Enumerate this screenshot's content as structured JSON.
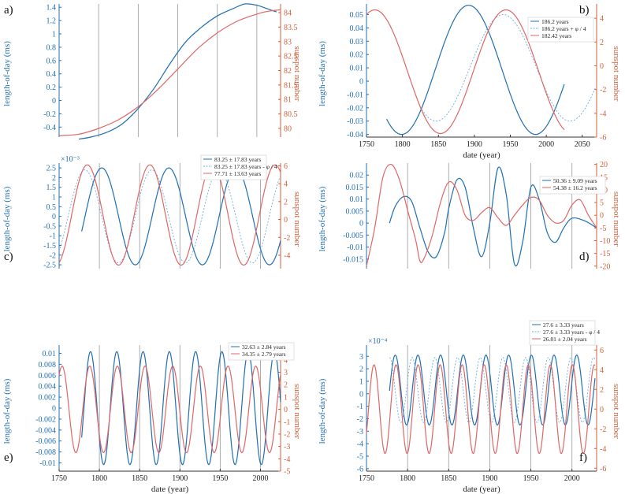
{
  "colors": {
    "blue": "#1f6fb2",
    "lightblue": "#6aaee0",
    "red": "#e06666",
    "axisBlue": "#1f6fb2",
    "axisRed": "#d0603a",
    "vline": "#999999"
  },
  "common": {
    "xlabel": "date (year)",
    "ylabel_left": "length-of-day (ms)",
    "ylabel_right": "sunspot number"
  },
  "chart_data": [
    {
      "panel": "a)",
      "type": "line",
      "xlim": [
        1750,
        2030
      ],
      "ylim_left": [
        -0.55,
        1.45
      ],
      "yticks_left": [
        "-0.4",
        "-0.2",
        "0",
        "0.2",
        "0.4",
        "0.6",
        "0.8",
        "1",
        "1.2",
        "1.4"
      ],
      "ylim_right": [
        79.7,
        84.3
      ],
      "yticks_right": [
        "80",
        "80.5",
        "81",
        "81.5",
        "82",
        "82.5",
        "83",
        "83.5",
        "84"
      ],
      "xticks": [],
      "vlines": [
        1800,
        1850,
        1900,
        1950,
        2000
      ],
      "ylabel_left": "length-of-day (ms)",
      "ylabel_right": "sunspot number",
      "series": [
        {
          "color": "blue",
          "axis": "left",
          "x": [
            1775,
            1790,
            1810,
            1830,
            1850,
            1870,
            1890,
            1910,
            1930,
            1950,
            1970,
            1985,
            2000,
            2015,
            2025
          ],
          "y": [
            -0.58,
            -0.55,
            -0.48,
            -0.35,
            -0.12,
            0.18,
            0.55,
            0.88,
            1.1,
            1.27,
            1.38,
            1.45,
            1.43,
            1.37,
            1.33
          ]
        },
        {
          "color": "red",
          "axis": "right",
          "x": [
            1750,
            1775,
            1800,
            1825,
            1850,
            1875,
            1900,
            1925,
            1950,
            1975,
            2000,
            2015,
            2030
          ],
          "y": [
            79.75,
            79.8,
            80.0,
            80.3,
            80.75,
            81.35,
            82.05,
            82.75,
            83.3,
            83.7,
            83.95,
            84.05,
            84.1
          ]
        }
      ]
    },
    {
      "panel": "b)",
      "type": "line",
      "xlim": [
        1750,
        2070
      ],
      "xticks": [
        "1750",
        "1800",
        "1850",
        "1900",
        "1950",
        "2000",
        "2050"
      ],
      "ylim_left": [
        -0.042,
        0.058
      ],
      "yticks_left": [
        "-0.04",
        "-0.03",
        "-0.02",
        "-0.01",
        "0",
        "0.01",
        "0.02",
        "0.03",
        "0.04",
        "0.05"
      ],
      "ylim_right": [
        -6,
        5.2
      ],
      "yticks_right": [
        "-6",
        "-4",
        "-2",
        "0",
        "2",
        "4"
      ],
      "xlabel": "date (year)",
      "ylabel_left": "length-of-day (ms)",
      "ylabel_right": "sunspot number",
      "legend": [
        "186.2 years",
        "186.2 years + φ / 4",
        "182.42 years"
      ],
      "series": [
        {
          "color": "blue",
          "axis": "left",
          "period": 186.2,
          "amp": 0.0485,
          "mean": 0.0085,
          "peak": 1892,
          "x0": 1778,
          "x1": 2025
        },
        {
          "color": "lightblue",
          "axis": "left",
          "dashed": true,
          "period": 186.2,
          "amp": 0.04,
          "mean": 0.01,
          "peak": 1940,
          "x0": 1827,
          "x1": 2068
        },
        {
          "color": "red",
          "axis": "right",
          "period": 182.42,
          "amp": 5.2,
          "mean": -0.5,
          "peak": 1944,
          "x0": 1750,
          "x1": 2025
        }
      ]
    },
    {
      "panel": "c)",
      "type": "line",
      "xlim": [
        1750,
        2025
      ],
      "xticks": [],
      "vlines": [
        1800,
        1850,
        1900,
        1950,
        2000
      ],
      "exponent": "×10⁻³",
      "ylim_left": [
        -2.7,
        2.75
      ],
      "yticks_left": [
        "-2.5",
        "-2",
        "-1.5",
        "-1",
        "-0.5",
        "0",
        "0.5",
        "1",
        "1.5",
        "2",
        "2.5"
      ],
      "ylim_right": [
        -5.5,
        6.3
      ],
      "yticks_right": [
        "-4",
        "-2",
        "0",
        "2",
        "4",
        "6"
      ],
      "ylabel_left": "length-of-day (ms)",
      "ylabel_right": "sunspot number",
      "legend": [
        "83.25 ± 17.83 years",
        "83.25 ± 17.83 years - φ / 4",
        "77.71 ± 13.63 years"
      ],
      "series": [
        {
          "color": "blue",
          "axis": "left",
          "period": 83.25,
          "amp": 2.5,
          "mean": 0.0,
          "peak": 1803,
          "x0": 1778,
          "x1": 2025
        },
        {
          "color": "lightblue",
          "axis": "left",
          "dashed": true,
          "period": 83.25,
          "amp": 2.4,
          "mean": 0.0,
          "peak": 1782,
          "x0": 1750,
          "x1": 2025
        },
        {
          "color": "red",
          "axis": "right",
          "period": 77.71,
          "amp": 5.6,
          "mean": 0.5,
          "peak": 1785,
          "x0": 1750,
          "x1": 2025
        }
      ]
    },
    {
      "panel": "d)",
      "type": "line",
      "xlim": [
        1750,
        2030
      ],
      "xticks": [],
      "vlines": [
        1800,
        1850,
        1900,
        1950,
        2000
      ],
      "ylim_left": [
        -0.019,
        0.025
      ],
      "yticks_left": [
        "-0.015",
        "-0.01",
        "-0.005",
        "0",
        "0.005",
        "0.01",
        "0.015",
        "0.02"
      ],
      "ylim_right": [
        -21,
        20.5
      ],
      "yticks_right": [
        "-20",
        "-15",
        "-10",
        "-5",
        "0",
        "5",
        "10",
        "15",
        "20"
      ],
      "ylabel_left": "length-of-day (ms)",
      "ylabel_right": "sunspot number",
      "legend": [
        "50.36 ± 9.09 years",
        "54.38 ± 16.2 years"
      ],
      "series": [
        {
          "color": "blue",
          "axis": "left",
          "x": [
            1778,
            1785,
            1795,
            1805,
            1815,
            1825,
            1835,
            1845,
            1850,
            1860,
            1870,
            1880,
            1890,
            1900,
            1910,
            1920,
            1930,
            1940,
            1950,
            1960,
            1970,
            1980,
            1990,
            2000,
            2015,
            2030
          ],
          "y": [
            0.0,
            0.007,
            0.011,
            0.009,
            -0.002,
            -0.012,
            -0.014,
            -0.004,
            0.006,
            0.018,
            0.015,
            -0.002,
            -0.014,
            0.0,
            0.023,
            0.012,
            -0.017,
            -0.008,
            0.015,
            0.01,
            -0.004,
            -0.008,
            -0.002,
            0.002,
            0.001,
            -0.002
          ]
        },
        {
          "color": "red",
          "axis": "right",
          "x": [
            1750,
            1760,
            1770,
            1780,
            1790,
            1800,
            1810,
            1815,
            1820,
            1830,
            1840,
            1850,
            1860,
            1870,
            1880,
            1890,
            1900,
            1910,
            1920,
            1930,
            1940,
            1950,
            1960,
            1970,
            1980,
            1990,
            2000,
            2010,
            2020,
            2030
          ],
          "y": [
            -20,
            -5,
            15,
            20,
            14,
            2,
            -10,
            -18,
            -17,
            -8,
            5,
            13,
            10,
            0,
            -2,
            1,
            3,
            -1,
            -4,
            0,
            4,
            7,
            6,
            0,
            -3,
            -2,
            4,
            6,
            0,
            -5
          ]
        }
      ]
    },
    {
      "panel": "e)",
      "type": "line",
      "xlim": [
        1750,
        2025
      ],
      "xticks": [
        "1750",
        "1800",
        "1850",
        "1900",
        "1950",
        "2000"
      ],
      "vlines": [
        1800,
        1850,
        1900,
        1950,
        2000
      ],
      "ylim_left": [
        -0.0115,
        0.0115
      ],
      "yticks_left": [
        "-0.01",
        "-0.008",
        "-0.006",
        "-0.004",
        "-0.002",
        "0",
        "0.002",
        "0.004",
        "0.006",
        "0.008",
        "0.01"
      ],
      "ylim_right": [
        -5,
        5.2
      ],
      "yticks_right": [
        "-5",
        "-4",
        "-3",
        "-2",
        "-1",
        "0",
        "1",
        "2",
        "3",
        "4",
        "5"
      ],
      "xlabel": "date (year)",
      "ylabel_left": "length-of-day (ms)",
      "ylabel_right": "sunspot number",
      "legend": [
        "32.63 ± 2.84 years",
        "34.35 ± 2.79 years"
      ],
      "series": [
        {
          "color": "blue",
          "axis": "left",
          "period": 32.63,
          "amp": 0.0103,
          "mean": 0.0,
          "peak": 1789,
          "x0": 1778,
          "x1": 2025
        },
        {
          "color": "red",
          "axis": "right",
          "period": 34.35,
          "amp": 3.5,
          "mean": 0.0,
          "peak": 1788,
          "x0": 1750,
          "x1": 2025
        }
      ]
    },
    {
      "panel": "f)",
      "type": "line",
      "xlim": [
        1750,
        2030
      ],
      "xticks": [
        "1750",
        "1800",
        "1850",
        "1900",
        "1950",
        "2000"
      ],
      "vlines": [
        1800,
        1850,
        1900,
        1950,
        2000
      ],
      "exponent": "×10⁻⁴",
      "ylim_left": [
        -6.2,
        3.9
      ],
      "yticks_left": [
        "-6",
        "-5",
        "-4",
        "-3",
        "-2",
        "-1",
        "0",
        "1",
        "2",
        "3"
      ],
      "ylim_right": [
        -6.3,
        6.5
      ],
      "yticks_right": [
        "-6",
        "-4",
        "-2",
        "0",
        "2",
        "4",
        "6"
      ],
      "xlabel": "date (year)",
      "ylabel_left": "length-of-day (ms)",
      "ylabel_right": "sunspot number",
      "legend": [
        "27.6 ± 3.33 years",
        "27.6 ± 3.33 years - φ / 4",
        "26.81 ± 2.04 years"
      ],
      "series": [
        {
          "color": "blue",
          "axis": "left",
          "period": 27.6,
          "amp": 2.8,
          "mean": 0.3,
          "peak": 1785,
          "x0": 1778,
          "x1": 2028
        },
        {
          "color": "lightblue",
          "axis": "left",
          "dashed": true,
          "period": 27.6,
          "amp": 2.6,
          "mean": 0.3,
          "peak": 1778,
          "x0": 1778,
          "x1": 2028
        },
        {
          "color": "red",
          "axis": "right",
          "period": 26.81,
          "amp": 4.5,
          "mean": 0.0,
          "peak": 1786,
          "x0": 1750,
          "x1": 2028
        }
      ]
    }
  ]
}
